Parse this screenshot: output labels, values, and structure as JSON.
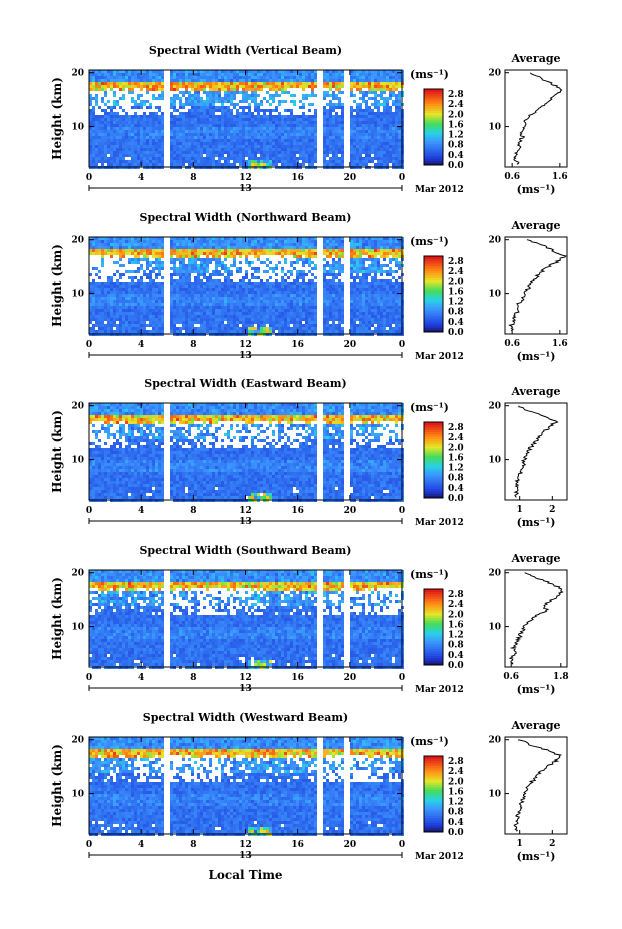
{
  "figure": {
    "xlabel": "Local Time",
    "date_label": "Mar 2012",
    "day_label": "13",
    "ylabel": "Height (km)",
    "avg_title": "Average",
    "colorbar_unit": "(ms⁻¹)",
    "avg_xunit": "(ms⁻¹)"
  },
  "chart_data": [
    {
      "type": "heatmap",
      "title": "Spectral Width (Vertical Beam)",
      "xlabel": "Local Time",
      "ylabel": "Height (km)",
      "x_ticks": [
        "0",
        "4",
        "8",
        "12",
        "16",
        "20",
        "0"
      ],
      "xlim": [
        0,
        24
      ],
      "y_ticks": [
        "10",
        "20"
      ],
      "ylim": [
        2.5,
        20.5
      ],
      "colorbar_ticks": [
        "0.0",
        "0.4",
        "0.8",
        "1.2",
        "1.6",
        "2.0",
        "2.4",
        "2.8"
      ],
      "colorbar_range": [
        0,
        3.0
      ],
      "data_gaps_hours": [
        [
          5.7,
          6.0
        ],
        [
          17.4,
          17.9
        ],
        [
          19.4,
          19.9
        ]
      ],
      "average_profile": {
        "x_ticks": [
          "0.6",
          "1.6"
        ],
        "xlim": [
          0.45,
          1.75
        ],
        "ylim": [
          2.5,
          20.5
        ],
        "height_km": [
          3,
          4,
          5,
          6,
          7,
          8,
          9,
          10,
          11,
          12,
          13,
          14,
          15,
          16,
          17,
          18,
          19,
          20
        ],
        "width_ms": [
          0.72,
          0.66,
          0.7,
          0.78,
          0.74,
          0.82,
          0.8,
          0.86,
          0.84,
          0.98,
          1.1,
          1.25,
          1.38,
          1.55,
          1.65,
          1.42,
          1.2,
          1.0
        ]
      }
    },
    {
      "type": "heatmap",
      "title": "Spectral Width (Northward Beam)",
      "xlabel": "Local Time",
      "ylabel": "Height (km)",
      "x_ticks": [
        "0",
        "4",
        "8",
        "12",
        "16",
        "20",
        "0"
      ],
      "xlim": [
        0,
        24
      ],
      "y_ticks": [
        "10",
        "20"
      ],
      "ylim": [
        2.5,
        20.5
      ],
      "colorbar_ticks": [
        "0.0",
        "0.4",
        "0.8",
        "1.2",
        "1.6",
        "2.0",
        "2.4",
        "2.8"
      ],
      "colorbar_range": [
        0,
        3.0
      ],
      "data_gaps_hours": [
        [
          5.7,
          6.0
        ],
        [
          17.4,
          17.9
        ],
        [
          19.4,
          19.9
        ]
      ],
      "average_profile": {
        "x_ticks": [
          "0.6",
          "1.6"
        ],
        "xlim": [
          0.45,
          1.75
        ],
        "ylim": [
          2.5,
          20.5
        ],
        "height_km": [
          3,
          4,
          5,
          6,
          7,
          8,
          9,
          10,
          11,
          12,
          13,
          14,
          15,
          16,
          17,
          18,
          19,
          20
        ],
        "width_ms": [
          0.62,
          0.58,
          0.66,
          0.62,
          0.75,
          0.72,
          0.82,
          0.86,
          0.95,
          0.98,
          1.1,
          1.2,
          1.35,
          1.55,
          1.7,
          1.45,
          1.25,
          0.9
        ]
      }
    },
    {
      "type": "heatmap",
      "title": "Spectral Width (Eastward Beam)",
      "xlabel": "Local Time",
      "ylabel": "Height (km)",
      "x_ticks": [
        "0",
        "4",
        "8",
        "12",
        "16",
        "20",
        "0"
      ],
      "xlim": [
        0,
        24
      ],
      "y_ticks": [
        "10",
        "20"
      ],
      "ylim": [
        2.5,
        20.5
      ],
      "colorbar_ticks": [
        "0.0",
        "0.4",
        "0.8",
        "1.2",
        "1.6",
        "2.0",
        "2.4",
        "2.8"
      ],
      "colorbar_range": [
        0,
        3.0
      ],
      "data_gaps_hours": [
        [
          5.7,
          6.0
        ],
        [
          17.4,
          17.9
        ],
        [
          19.4,
          19.9
        ]
      ],
      "average_profile": {
        "x_ticks": [
          "1",
          "2"
        ],
        "xlim": [
          0.55,
          2.45
        ],
        "ylim": [
          2.5,
          20.5
        ],
        "height_km": [
          3,
          4,
          5,
          6,
          7,
          8,
          9,
          10,
          11,
          12,
          13,
          14,
          15,
          16,
          17,
          18,
          19,
          20
        ],
        "width_ms": [
          0.95,
          0.88,
          0.92,
          0.9,
          1.02,
          1.05,
          1.12,
          1.15,
          1.25,
          1.3,
          1.45,
          1.55,
          1.7,
          1.9,
          2.1,
          1.8,
          1.3,
          0.95
        ]
      }
    },
    {
      "type": "heatmap",
      "title": "Spectral Width (Southward Beam)",
      "xlabel": "Local Time",
      "ylabel": "Height (km)",
      "x_ticks": [
        "0",
        "4",
        "8",
        "12",
        "16",
        "20",
        "0"
      ],
      "xlim": [
        0,
        24
      ],
      "y_ticks": [
        "10",
        "20"
      ],
      "ylim": [
        2.5,
        20.5
      ],
      "colorbar_ticks": [
        "0.0",
        "0.4",
        "0.8",
        "1.2",
        "1.6",
        "2.0",
        "2.4",
        "2.8"
      ],
      "colorbar_range": [
        0,
        3.0
      ],
      "data_gaps_hours": [
        [
          5.7,
          6.0
        ],
        [
          17.4,
          17.9
        ],
        [
          19.4,
          19.9
        ]
      ],
      "average_profile": {
        "x_ticks": [
          "0.6",
          "1.8"
        ],
        "xlim": [
          0.45,
          1.95
        ],
        "ylim": [
          2.5,
          20.5
        ],
        "height_km": [
          3,
          4,
          5,
          6,
          7,
          8,
          9,
          10,
          11,
          12,
          13,
          14,
          15,
          16,
          17,
          18,
          19,
          20
        ],
        "width_ms": [
          0.62,
          0.6,
          0.68,
          0.66,
          0.74,
          0.8,
          0.85,
          0.92,
          1.05,
          1.2,
          1.45,
          1.4,
          1.6,
          1.75,
          1.85,
          1.55,
          1.25,
          0.9
        ]
      }
    },
    {
      "type": "heatmap",
      "title": "Spectral Width (Westward Beam)",
      "xlabel": "Local Time",
      "ylabel": "Height (km)",
      "x_ticks": [
        "0",
        "4",
        "8",
        "12",
        "16",
        "20",
        "0"
      ],
      "xlim": [
        0,
        24
      ],
      "y_ticks": [
        "10",
        "20"
      ],
      "ylim": [
        2.5,
        20.5
      ],
      "colorbar_ticks": [
        "0.0",
        "0.4",
        "0.8",
        "1.2",
        "1.6",
        "2.0",
        "2.4",
        "2.8"
      ],
      "colorbar_range": [
        0,
        3.0
      ],
      "data_gaps_hours": [
        [
          5.7,
          6.0
        ],
        [
          17.4,
          17.9
        ],
        [
          19.4,
          19.9
        ]
      ],
      "average_profile": {
        "x_ticks": [
          "1",
          "2"
        ],
        "xlim": [
          0.55,
          2.45
        ],
        "ylim": [
          2.5,
          20.5
        ],
        "height_km": [
          3,
          4,
          5,
          6,
          7,
          8,
          9,
          10,
          11,
          12,
          13,
          14,
          15,
          16,
          17,
          18,
          19,
          20
        ],
        "width_ms": [
          0.92,
          0.88,
          0.9,
          0.95,
          1.0,
          1.02,
          1.1,
          1.15,
          1.22,
          1.35,
          1.5,
          1.65,
          1.85,
          2.1,
          2.25,
          1.9,
          1.35,
          1.0
        ]
      }
    }
  ]
}
